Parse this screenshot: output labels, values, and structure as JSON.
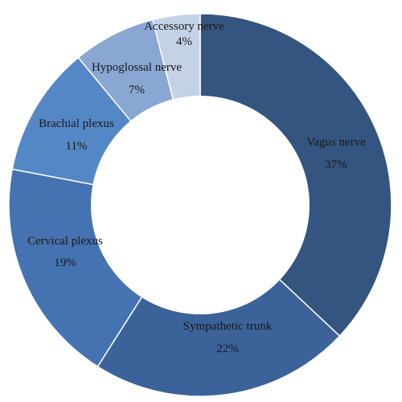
{
  "chart_data": {
    "type": "pie",
    "variant": "donut",
    "title": "",
    "categories": [
      "Vagus nerve",
      "Sympathetic trunk",
      "Cervical plexus",
      "Brachial plexus",
      "Hypoglossal nerve",
      "Accessory nerve"
    ],
    "values": [
      37,
      22,
      19,
      11,
      7,
      4
    ],
    "value_labels": [
      "37%",
      "22%",
      "19%",
      "11%",
      "7%",
      "4%"
    ],
    "colors": [
      "#34557f",
      "#3c629a",
      "#4572b0",
      "#5487c6",
      "#8aa6d2",
      "#c4d2e6"
    ],
    "start_angle_deg": 0,
    "direction": "clockwise",
    "legend": "none"
  }
}
